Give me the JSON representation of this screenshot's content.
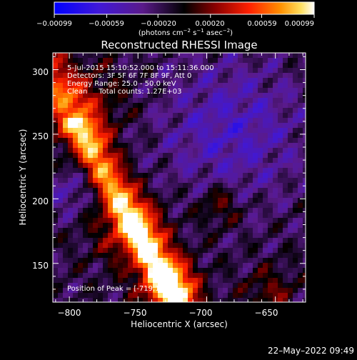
{
  "chart_data": {
    "type": "heatmap",
    "title": "Reconstructed RHESSI Image",
    "xlabel": "Heliocentric X (arcsec)",
    "ylabel": "Heliocentric Y (arcsec)",
    "xlim": [
      -812,
      -628
    ],
    "ylim": [
      120,
      313
    ],
    "x_ticks": [
      -800,
      -750,
      -700,
      -650
    ],
    "y_ticks": [
      150,
      200,
      250,
      300
    ],
    "x_tick_labels": [
      "−800",
      "−750",
      "−700",
      "−650"
    ],
    "y_tick_labels": [
      "150",
      "200",
      "250",
      "300"
    ],
    "colorbar": {
      "range": [
        -0.00099,
        0.00099
      ],
      "ticks": [
        -0.00099,
        -0.00059,
        -0.0002,
        0.0002,
        0.00059,
        0.00099
      ],
      "tick_labels": [
        "−0.00099",
        "−0.00059",
        "−0.00020",
        "0.00020",
        "0.00059",
        "0.00099"
      ],
      "units_parts": [
        "(photons cm",
        "−2",
        " s",
        "−1",
        " asec",
        "−2",
        ")"
      ]
    },
    "annotations": [
      "5-Jul-2015 15:10:52.000 to 15:11:36.000",
      "Detectors: 3F 5F 6F 7F 8F 9F, Att 0",
      "Energy Range: 25.0 - 50.0 keV",
      "Clean     Total counts: 1.27E+03"
    ],
    "peak_label": "Position of Peak = [-719,130]",
    "colors": {
      "low": "#0000ff",
      "mid": "#000000",
      "high": "#ffffff"
    }
  },
  "footer": {
    "timestamp": "22–May–2022 09:49"
  }
}
